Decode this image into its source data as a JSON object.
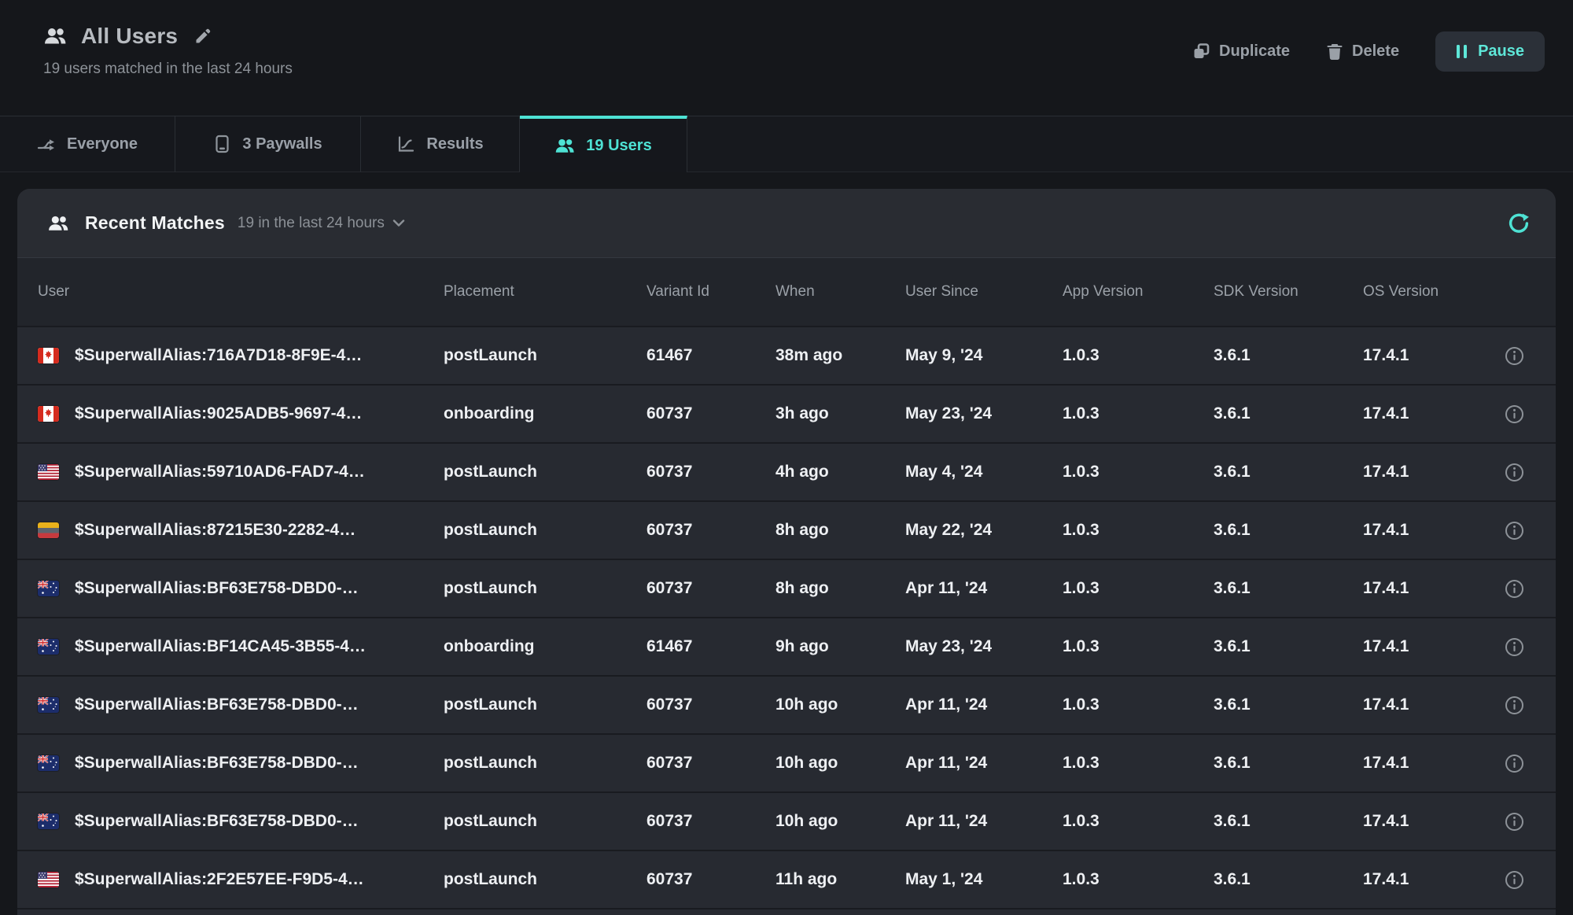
{
  "colors": {
    "accent": "#4EE2D4",
    "pause_text": "#5EE7D8"
  },
  "page": {
    "title": "All Users",
    "subtitle": "19 users matched in the last 24 hours"
  },
  "actions": {
    "duplicate": "Duplicate",
    "delete": "Delete",
    "pause": "Pause"
  },
  "tabs": [
    {
      "label": "Everyone",
      "icon": "split-arrow-icon",
      "active": false
    },
    {
      "label": "3 Paywalls",
      "icon": "phone-icon",
      "active": false
    },
    {
      "label": "Results",
      "icon": "line-chart-icon",
      "active": false
    },
    {
      "label": "19 Users",
      "icon": "users-icon",
      "active": true
    }
  ],
  "panel": {
    "title": "Recent Matches",
    "range_label": "19 in the last 24 hours"
  },
  "table": {
    "columns": [
      "User",
      "Placement",
      "Variant Id",
      "When",
      "User Since",
      "App Version",
      "SDK Version",
      "OS Version"
    ],
    "rows": [
      {
        "flag": "flag-ca",
        "user": "$SuperwallAlias:716A7D18-8F9E-4…",
        "placement": "postLaunch",
        "variant_id": "61467",
        "when": "38m ago",
        "user_since": "May 9, '24",
        "app_version": "1.0.3",
        "sdk_version": "3.6.1",
        "os_version": "17.4.1"
      },
      {
        "flag": "flag-ca",
        "user": "$SuperwallAlias:9025ADB5-9697-4…",
        "placement": "onboarding",
        "variant_id": "60737",
        "when": "3h ago",
        "user_since": "May 23, '24",
        "app_version": "1.0.3",
        "sdk_version": "3.6.1",
        "os_version": "17.4.1"
      },
      {
        "flag": "flag-us",
        "user": "$SuperwallAlias:59710AD6-FAD7-4…",
        "placement": "postLaunch",
        "variant_id": "60737",
        "when": "4h ago",
        "user_since": "May 4, '24",
        "app_version": "1.0.3",
        "sdk_version": "3.6.1",
        "os_version": "17.4.1"
      },
      {
        "flag": "flag-co",
        "user": "$SuperwallAlias:87215E30-2282-4…",
        "placement": "postLaunch",
        "variant_id": "60737",
        "when": "8h ago",
        "user_since": "May 22, '24",
        "app_version": "1.0.3",
        "sdk_version": "3.6.1",
        "os_version": "17.4.1"
      },
      {
        "flag": "flag-au",
        "user": "$SuperwallAlias:BF63E758-DBD0-…",
        "placement": "postLaunch",
        "variant_id": "60737",
        "when": "8h ago",
        "user_since": "Apr 11, '24",
        "app_version": "1.0.3",
        "sdk_version": "3.6.1",
        "os_version": "17.4.1"
      },
      {
        "flag": "flag-au",
        "user": "$SuperwallAlias:BF14CA45-3B55-4…",
        "placement": "onboarding",
        "variant_id": "61467",
        "when": "9h ago",
        "user_since": "May 23, '24",
        "app_version": "1.0.3",
        "sdk_version": "3.6.1",
        "os_version": "17.4.1"
      },
      {
        "flag": "flag-au",
        "user": "$SuperwallAlias:BF63E758-DBD0-…",
        "placement": "postLaunch",
        "variant_id": "60737",
        "when": "10h ago",
        "user_since": "Apr 11, '24",
        "app_version": "1.0.3",
        "sdk_version": "3.6.1",
        "os_version": "17.4.1"
      },
      {
        "flag": "flag-au",
        "user": "$SuperwallAlias:BF63E758-DBD0-…",
        "placement": "postLaunch",
        "variant_id": "60737",
        "when": "10h ago",
        "user_since": "Apr 11, '24",
        "app_version": "1.0.3",
        "sdk_version": "3.6.1",
        "os_version": "17.4.1"
      },
      {
        "flag": "flag-au",
        "user": "$SuperwallAlias:BF63E758-DBD0-…",
        "placement": "postLaunch",
        "variant_id": "60737",
        "when": "10h ago",
        "user_since": "Apr 11, '24",
        "app_version": "1.0.3",
        "sdk_version": "3.6.1",
        "os_version": "17.4.1"
      },
      {
        "flag": "flag-us",
        "user": "$SuperwallAlias:2F2E57EE-F9D5-4…",
        "placement": "postLaunch",
        "variant_id": "60737",
        "when": "11h ago",
        "user_since": "May 1, '24",
        "app_version": "1.0.3",
        "sdk_version": "3.6.1",
        "os_version": "17.4.1"
      }
    ]
  }
}
